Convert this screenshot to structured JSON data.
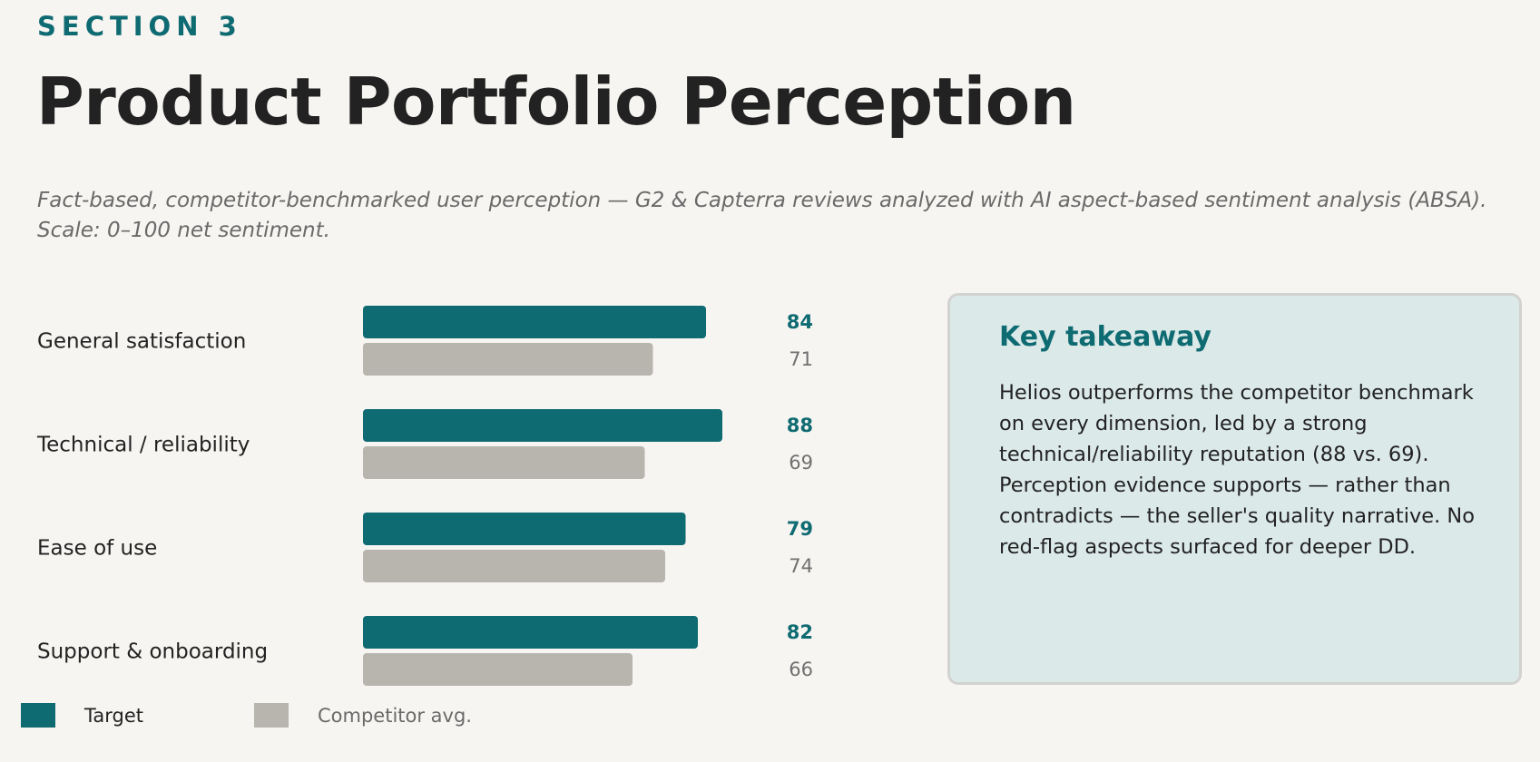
{
  "header": {
    "eyebrow": "SECTION 3",
    "title": "Product Portfolio Perception",
    "subtitle": "Fact-based, competitor-benchmarked user perception — G2 & Capterra reviews analyzed with AI aspect-based sentiment analysis (ABSA). Scale: 0–100 net sentiment."
  },
  "chart_data": {
    "type": "bar",
    "orientation": "horizontal",
    "categories": [
      "General satisfaction",
      "Technical / reliability",
      "Ease of use",
      "Support & onboarding"
    ],
    "series": [
      {
        "name": "Target",
        "values": [
          84,
          88,
          79,
          82
        ]
      },
      {
        "name": "Competitor avg.",
        "values": [
          71,
          69,
          74,
          66
        ]
      }
    ],
    "xlim": [
      0,
      100
    ],
    "grid": false,
    "legend": "bottom-left"
  },
  "colors": {
    "target": "#0f6b72",
    "competitor": "#b8b5ae",
    "background": "#f7f5f2",
    "target_value_text": "#0f6b72",
    "competitor_value_text": "#707070"
  },
  "legend": {
    "target_label": "Target",
    "competitor_label": "Competitor avg."
  },
  "takeaway": {
    "title": "Key takeaway",
    "body": "Helios outperforms the competitor benchmark on every dimension, led by a strong technical/reliability reputation (88 vs. 69). Perception evidence supports — rather than contradicts — the seller's quality narrative. No red-flag aspects surfaced for deeper DD."
  }
}
